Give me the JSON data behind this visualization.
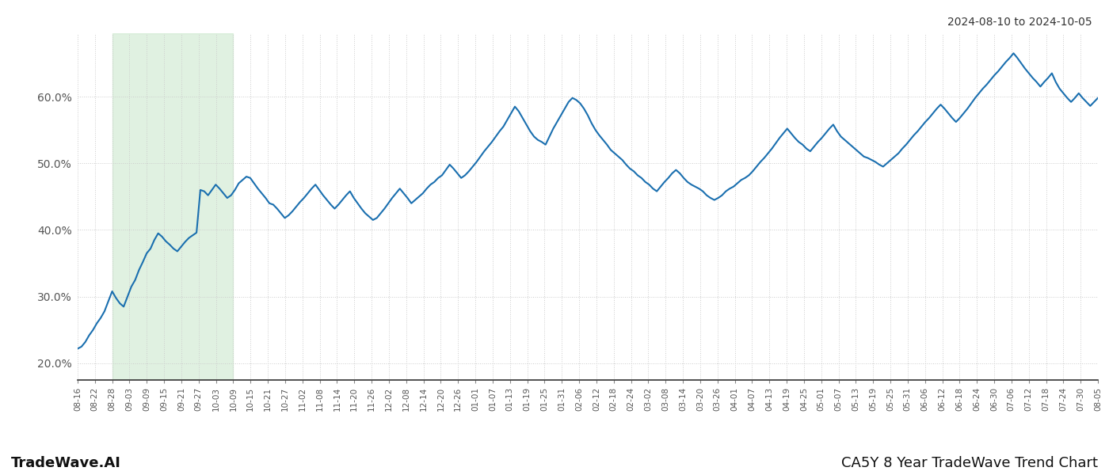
{
  "title_top_right": "2024-08-10 to 2024-10-05",
  "bottom_left": "TradeWave.AI",
  "bottom_right": "CA5Y 8 Year TradeWave Trend Chart",
  "line_color": "#1a6faf",
  "line_width": 1.5,
  "shaded_region_color": "#c8e6c9",
  "shaded_region_alpha": 0.55,
  "background_color": "#ffffff",
  "grid_color": "#cccccc",
  "grid_style": ":",
  "ylim": [
    0.175,
    0.695
  ],
  "yticks": [
    0.2,
    0.3,
    0.4,
    0.5,
    0.6
  ],
  "ytick_labels": [
    "20.0%",
    "30.0%",
    "40.0%",
    "50.0%",
    "60.0%"
  ],
  "x_labels": [
    "08-16",
    "08-22",
    "08-28",
    "09-03",
    "09-09",
    "09-15",
    "09-21",
    "09-27",
    "10-03",
    "10-09",
    "10-15",
    "10-21",
    "10-27",
    "11-02",
    "11-08",
    "11-14",
    "11-20",
    "11-26",
    "12-02",
    "12-08",
    "12-14",
    "12-20",
    "12-26",
    "01-01",
    "01-07",
    "01-13",
    "01-19",
    "01-25",
    "01-31",
    "02-06",
    "02-12",
    "02-18",
    "02-24",
    "03-02",
    "03-08",
    "03-14",
    "03-20",
    "03-26",
    "04-01",
    "04-07",
    "04-13",
    "04-19",
    "04-25",
    "05-01",
    "05-07",
    "05-13",
    "05-19",
    "05-25",
    "05-31",
    "06-06",
    "06-12",
    "06-18",
    "06-24",
    "06-30",
    "07-06",
    "07-12",
    "07-18",
    "07-24",
    "07-30",
    "08-05"
  ],
  "shaded_x_start_label": "08-28",
  "shaded_x_end_label": "10-09",
  "values": [
    0.222,
    0.225,
    0.232,
    0.242,
    0.25,
    0.26,
    0.268,
    0.278,
    0.293,
    0.308,
    0.298,
    0.29,
    0.285,
    0.3,
    0.315,
    0.325,
    0.34,
    0.352,
    0.365,
    0.372,
    0.385,
    0.395,
    0.39,
    0.383,
    0.378,
    0.372,
    0.368,
    0.375,
    0.382,
    0.388,
    0.392,
    0.396,
    0.46,
    0.458,
    0.452,
    0.46,
    0.468,
    0.462,
    0.455,
    0.448,
    0.452,
    0.46,
    0.47,
    0.475,
    0.48,
    0.478,
    0.47,
    0.462,
    0.455,
    0.448,
    0.44,
    0.438,
    0.432,
    0.425,
    0.418,
    0.422,
    0.428,
    0.435,
    0.442,
    0.448,
    0.455,
    0.462,
    0.468,
    0.46,
    0.452,
    0.445,
    0.438,
    0.432,
    0.438,
    0.445,
    0.452,
    0.458,
    0.448,
    0.44,
    0.432,
    0.425,
    0.42,
    0.415,
    0.418,
    0.425,
    0.432,
    0.44,
    0.448,
    0.455,
    0.462,
    0.455,
    0.448,
    0.44,
    0.445,
    0.45,
    0.455,
    0.462,
    0.468,
    0.472,
    0.478,
    0.482,
    0.49,
    0.498,
    0.492,
    0.485,
    0.478,
    0.482,
    0.488,
    0.495,
    0.502,
    0.51,
    0.518,
    0.525,
    0.532,
    0.54,
    0.548,
    0.555,
    0.565,
    0.575,
    0.585,
    0.578,
    0.568,
    0.558,
    0.548,
    0.54,
    0.535,
    0.532,
    0.528,
    0.54,
    0.552,
    0.562,
    0.572,
    0.582,
    0.592,
    0.598,
    0.595,
    0.59,
    0.582,
    0.572,
    0.56,
    0.55,
    0.542,
    0.535,
    0.528,
    0.52,
    0.515,
    0.51,
    0.505,
    0.498,
    0.492,
    0.488,
    0.482,
    0.478,
    0.472,
    0.468,
    0.462,
    0.458,
    0.465,
    0.472,
    0.478,
    0.485,
    0.49,
    0.485,
    0.478,
    0.472,
    0.468,
    0.465,
    0.462,
    0.458,
    0.452,
    0.448,
    0.445,
    0.448,
    0.452,
    0.458,
    0.462,
    0.465,
    0.47,
    0.475,
    0.478,
    0.482,
    0.488,
    0.495,
    0.502,
    0.508,
    0.515,
    0.522,
    0.53,
    0.538,
    0.545,
    0.552,
    0.545,
    0.538,
    0.532,
    0.528,
    0.522,
    0.518,
    0.525,
    0.532,
    0.538,
    0.545,
    0.552,
    0.558,
    0.548,
    0.54,
    0.535,
    0.53,
    0.525,
    0.52,
    0.515,
    0.51,
    0.508,
    0.505,
    0.502,
    0.498,
    0.495,
    0.5,
    0.505,
    0.51,
    0.515,
    0.522,
    0.528,
    0.535,
    0.542,
    0.548,
    0.555,
    0.562,
    0.568,
    0.575,
    0.582,
    0.588,
    0.582,
    0.575,
    0.568,
    0.562,
    0.568,
    0.575,
    0.582,
    0.59,
    0.598,
    0.605,
    0.612,
    0.618,
    0.625,
    0.632,
    0.638,
    0.645,
    0.652,
    0.658,
    0.665,
    0.658,
    0.65,
    0.642,
    0.635,
    0.628,
    0.622,
    0.615,
    0.622,
    0.628,
    0.635,
    0.622,
    0.612,
    0.605,
    0.598,
    0.592,
    0.598,
    0.605,
    0.598,
    0.592,
    0.586,
    0.592,
    0.598
  ]
}
